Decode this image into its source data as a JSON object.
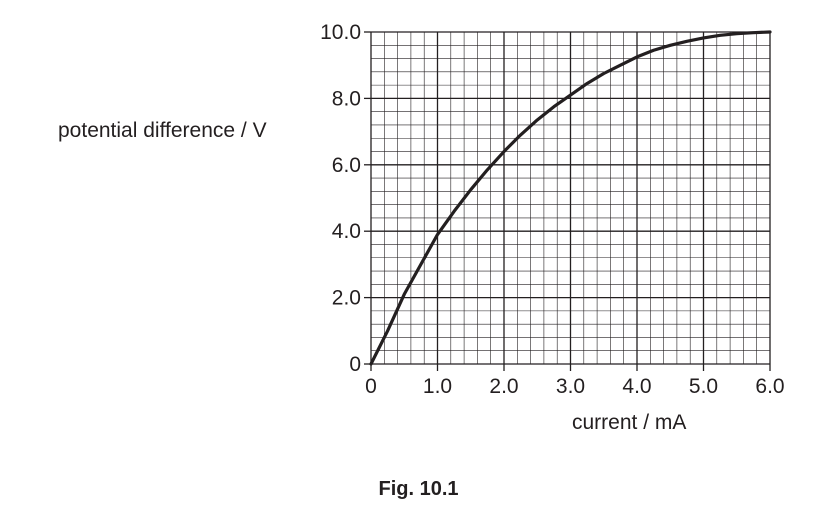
{
  "chart_data": {
    "type": "line",
    "xlabel": "current / mA",
    "ylabel": "potential difference / V",
    "xlim": [
      0,
      6.0
    ],
    "ylim": [
      0,
      10.0
    ],
    "x_ticks": [
      "0",
      "1.0",
      "2.0",
      "3.0",
      "4.0",
      "5.0",
      "6.0"
    ],
    "y_ticks": [
      "0",
      "2.0",
      "4.0",
      "6.0",
      "8.0",
      "10.0"
    ],
    "grid": true,
    "series": [
      {
        "x": [
          0,
          0.25,
          0.5,
          0.75,
          1.0,
          1.25,
          1.5,
          1.75,
          2.0,
          2.25,
          2.5,
          2.75,
          3.0,
          3.25,
          3.5,
          3.75,
          4.0,
          4.25,
          4.5,
          4.75,
          5.0,
          5.25,
          5.5,
          5.75,
          6.0
        ],
        "y": [
          0,
          1.0,
          2.1,
          3.0,
          3.9,
          4.6,
          5.25,
          5.85,
          6.4,
          6.9,
          7.35,
          7.75,
          8.1,
          8.45,
          8.75,
          9.0,
          9.25,
          9.45,
          9.6,
          9.72,
          9.82,
          9.9,
          9.95,
          9.98,
          10.0
        ]
      }
    ]
  },
  "caption": "Fig. 10.1"
}
